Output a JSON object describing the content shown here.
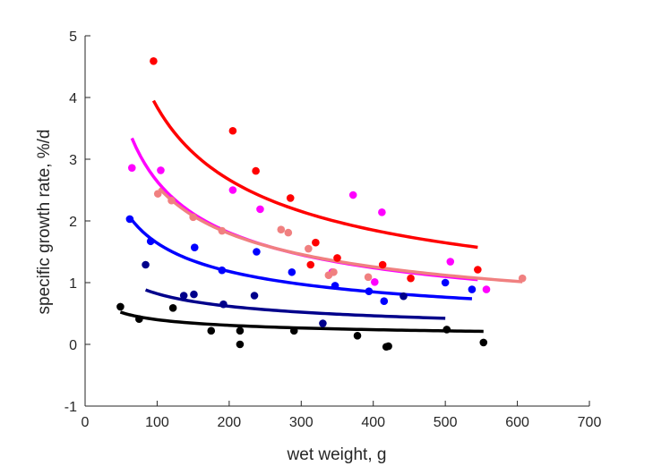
{
  "chart_data": {
    "type": "scatter",
    "xlabel": "wet weight, g",
    "ylabel": "specific growth rate, %/d",
    "xlim": [
      0,
      700
    ],
    "ylim": [
      -1,
      5
    ],
    "xticks": [
      "0",
      "100",
      "200",
      "300",
      "400",
      "500",
      "600",
      "700"
    ],
    "yticks": [
      "-1",
      "0",
      "1",
      "2",
      "3",
      "4",
      "5"
    ],
    "grid": false,
    "legend": "none",
    "series": [
      {
        "color": "#ff0000",
        "points": [
          [
            95,
            4.59
          ],
          [
            205,
            3.46
          ],
          [
            237,
            2.81
          ],
          [
            285,
            2.37
          ],
          [
            320,
            1.65
          ],
          [
            313,
            1.29
          ],
          [
            350,
            1.4
          ],
          [
            413,
            1.29
          ],
          [
            452,
            1.07
          ],
          [
            545,
            1.21
          ]
        ],
        "fit": {
          "a": 43.52,
          "b": 0.527,
          "x_range": [
            95,
            545
          ]
        }
      },
      {
        "color": "#ff00ff",
        "points": [
          [
            65,
            2.86
          ],
          [
            105,
            2.82
          ],
          [
            205,
            2.5
          ],
          [
            243,
            2.19
          ],
          [
            343,
            1.17
          ],
          [
            372,
            2.42
          ],
          [
            412,
            2.14
          ],
          [
            402,
            1.01
          ],
          [
            507,
            1.34
          ],
          [
            557,
            0.89
          ]
        ],
        "fit": {
          "a": 32.5,
          "b": 0.545,
          "x_range": [
            65,
            545
          ]
        }
      },
      {
        "color": "#f08080",
        "points": [
          [
            101,
            2.44
          ],
          [
            120,
            2.33
          ],
          [
            150,
            2.06
          ],
          [
            190,
            1.84
          ],
          [
            272,
            1.86
          ],
          [
            282,
            1.81
          ],
          [
            310,
            1.55
          ],
          [
            338,
            1.12
          ],
          [
            345,
            1.17
          ],
          [
            393,
            1.09
          ],
          [
            607,
            1.07
          ]
        ],
        "fit": {
          "a": 27.5,
          "b": 0.515,
          "x_range": [
            103,
            607
          ]
        }
      },
      {
        "color": "#0000ff",
        "points": [
          [
            62,
            2.03
          ],
          [
            91,
            1.67
          ],
          [
            152,
            1.57
          ],
          [
            190,
            1.2
          ],
          [
            238,
            1.5
          ],
          [
            287,
            1.17
          ],
          [
            347,
            0.95
          ],
          [
            394,
            0.86
          ],
          [
            415,
            0.7
          ],
          [
            500,
            1.0
          ],
          [
            537,
            0.89
          ]
        ],
        "fit": {
          "a": 14.63,
          "b": 0.475,
          "x_range": [
            62,
            537
          ]
        }
      },
      {
        "color": "#00008b",
        "points": [
          [
            84,
            1.29
          ],
          [
            137,
            0.79
          ],
          [
            151,
            0.81
          ],
          [
            192,
            0.65
          ],
          [
            235,
            0.79
          ],
          [
            330,
            0.34
          ],
          [
            442,
            0.78
          ]
        ],
        "fit": {
          "a": 5.5,
          "b": 0.413,
          "x_range": [
            84,
            500
          ]
        }
      },
      {
        "color": "#000000",
        "points": [
          [
            49,
            0.61
          ],
          [
            75,
            0.41
          ],
          [
            122,
            0.59
          ],
          [
            175,
            0.22
          ],
          [
            215,
            0.22
          ],
          [
            215,
            0.0
          ],
          [
            290,
            0.22
          ],
          [
            378,
            0.14
          ],
          [
            418,
            -0.04
          ],
          [
            421,
            -0.03
          ],
          [
            502,
            0.24
          ],
          [
            553,
            0.03
          ]
        ],
        "fit": {
          "a": 2.25,
          "b": 0.375,
          "x_range": [
            49,
            553
          ]
        }
      }
    ]
  }
}
